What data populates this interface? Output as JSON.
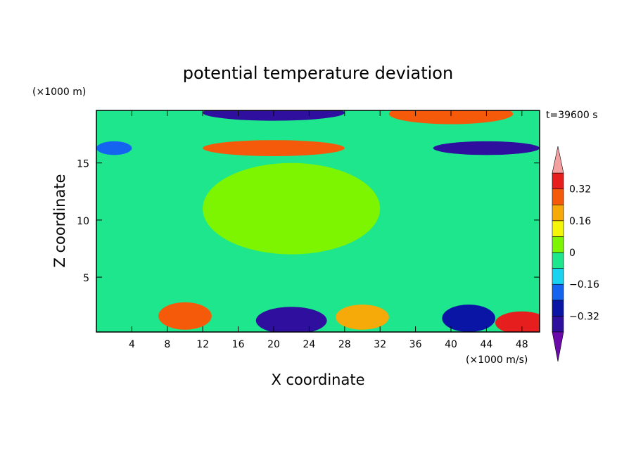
{
  "chart_data": {
    "type": "heatmap",
    "title": "potential temperature deviation",
    "xlabel": "X coordinate",
    "ylabel": "Z coordinate",
    "x_units": "(×1000 m/s)",
    "y_units": "(×1000 m)",
    "time_label": "t=39600 s",
    "xlim": [
      0,
      50
    ],
    "ylim": [
      0.2,
      19.6
    ],
    "x_ticks": [
      4,
      8,
      12,
      16,
      20,
      24,
      28,
      32,
      36,
      40,
      44,
      48
    ],
    "y_ticks": [
      5,
      10,
      15
    ],
    "colorbar": {
      "levels": [
        -0.4,
        -0.32,
        -0.24,
        -0.16,
        -0.08,
        0,
        0.08,
        0.16,
        0.24,
        0.32,
        0.4
      ],
      "labeled_ticks": [
        0.32,
        0.16,
        0,
        -0.16,
        -0.32
      ],
      "tick_labels": [
        "0.32",
        "0.16",
        "0",
        "−0.16",
        "−0.32"
      ],
      "colors": [
        "#6a0aa8",
        "#2e0f9e",
        "#0a14a5",
        "#1464f0",
        "#19d2f0",
        "#1ee68c",
        "#7df500",
        "#f5f50a",
        "#f5aa0a",
        "#f55a0a",
        "#e61e1e",
        "#f5a0a0"
      ],
      "extend": "both"
    },
    "features": [
      {
        "x": 20,
        "z": 19.4,
        "rx": 8,
        "rz": 0.7,
        "v": -0.36
      },
      {
        "x": 40,
        "z": 19.3,
        "rx": 7,
        "rz": 0.9,
        "v": 0.3
      },
      {
        "x": 20,
        "z": 16.3,
        "rx": 8,
        "rz": 0.7,
        "v": 0.28
      },
      {
        "x": 44,
        "z": 16.3,
        "rx": 6,
        "rz": 0.6,
        "v": -0.34
      },
      {
        "x": 2,
        "z": 16.3,
        "rx": 2,
        "rz": 0.6,
        "v": -0.2
      },
      {
        "x": 22,
        "z": 11,
        "rx": 10,
        "rz": 4,
        "v": 0.05
      },
      {
        "x": 10,
        "z": 1.6,
        "rx": 3,
        "rz": 1.2,
        "v": 0.24
      },
      {
        "x": 22,
        "z": 1.2,
        "rx": 4,
        "rz": 1.2,
        "v": -0.34
      },
      {
        "x": 30,
        "z": 1.5,
        "rx": 3,
        "rz": 1.1,
        "v": 0.2
      },
      {
        "x": 42,
        "z": 1.4,
        "rx": 3,
        "rz": 1.2,
        "v": -0.3
      },
      {
        "x": 48,
        "z": 1.0,
        "rx": 3,
        "rz": 1.0,
        "v": 0.32
      }
    ]
  }
}
